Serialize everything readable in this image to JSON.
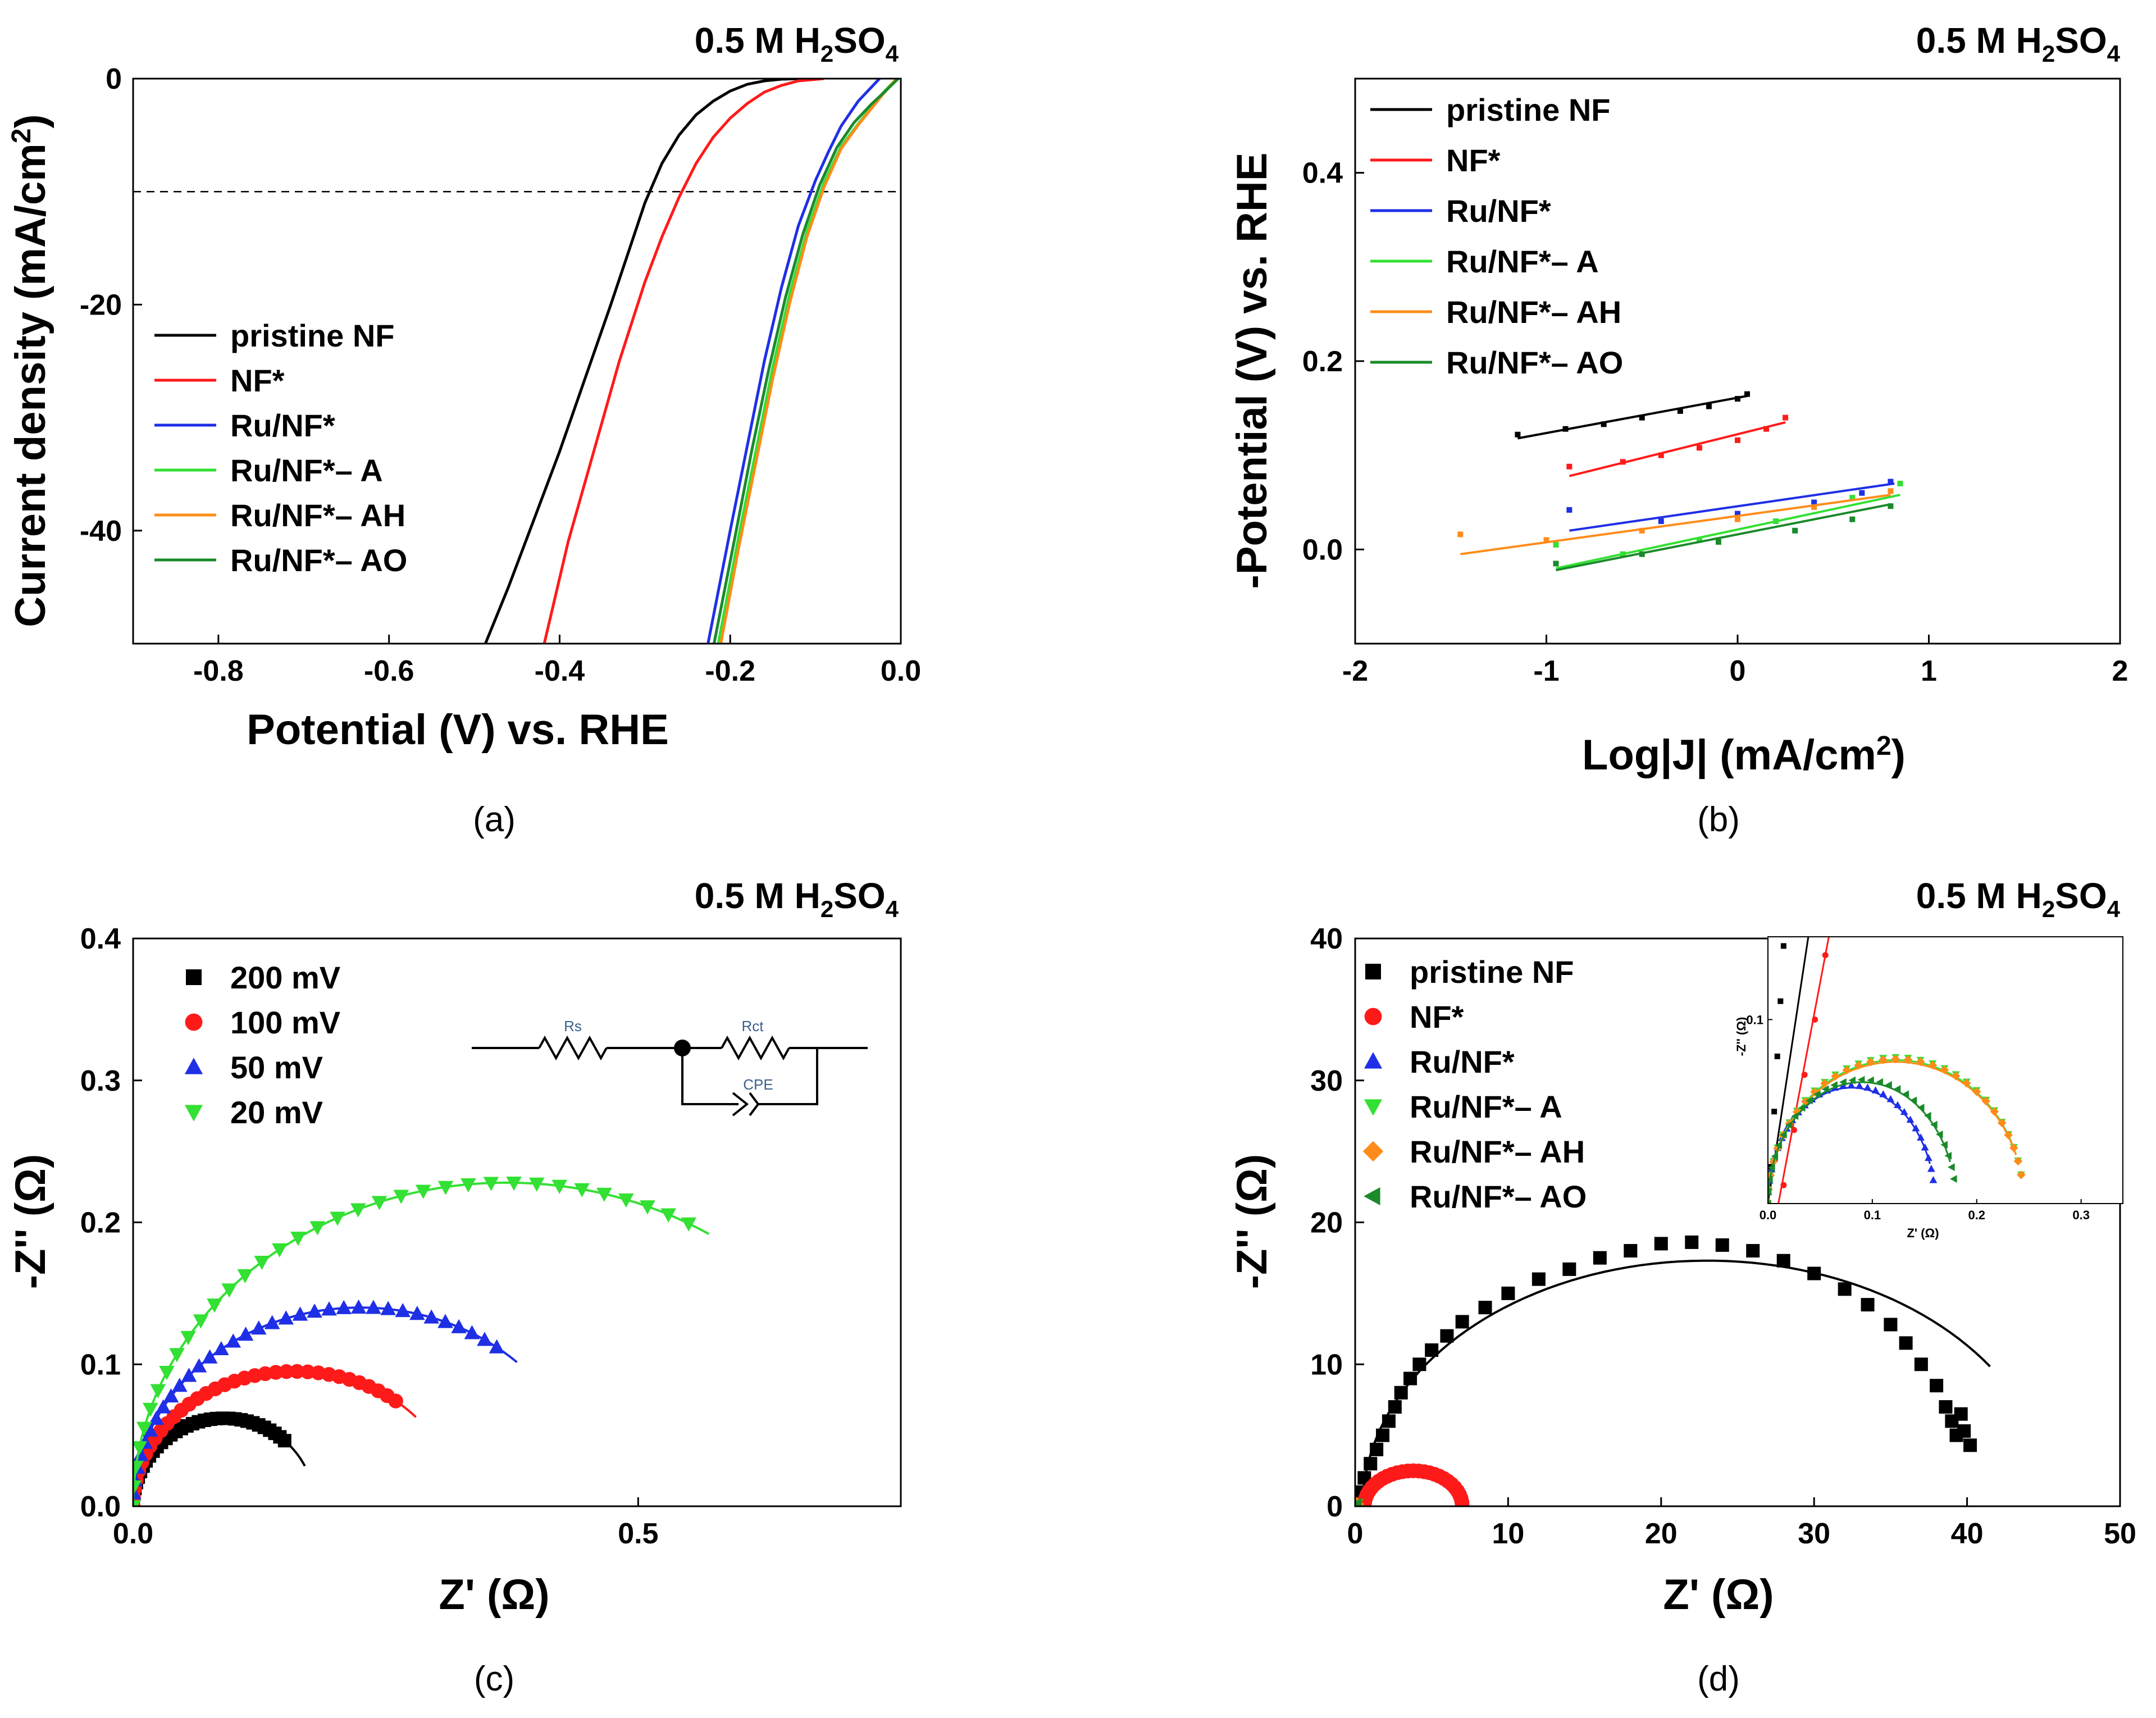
{
  "colors": {
    "black": "#000000",
    "red": "#ff1a1a",
    "blue": "#1f2fe6",
    "lightgreen": "#33e033",
    "orange": "#ff8c1a",
    "darkgreen": "#1a8a2a"
  },
  "chart_data": [
    {
      "panel": "(a)",
      "type": "line",
      "title": "0.5 M H2SO4",
      "xlabel": "Potential (V) vs. RHE",
      "ylabel": "Current density (mA/cm2)",
      "xlim": [
        -0.9,
        0.0
      ],
      "ylim": [
        -50,
        0
      ],
      "xticks": [
        -0.8,
        -0.6,
        -0.4,
        -0.2,
        0.0
      ],
      "xtick_labels": [
        "-0.8",
        "-0.6",
        "-0.4",
        "-0.2",
        "0.0"
      ],
      "yticks": [
        0,
        -20,
        -40
      ],
      "ytick_labels": [
        "0",
        "-20",
        "-40"
      ],
      "reference_line": {
        "y": -10,
        "style": "dashed"
      },
      "legend_position": "left",
      "series": [
        {
          "name": "pristine NF",
          "color_key": "black",
          "x": [
            -0.487,
            -0.46,
            -0.43,
            -0.4,
            -0.37,
            -0.34,
            -0.32,
            -0.3,
            -0.28,
            -0.26,
            -0.24,
            -0.22,
            -0.2,
            -0.18,
            -0.16,
            -0.14,
            -0.12
          ],
          "y": [
            -50,
            -45,
            -39,
            -33,
            -26.5,
            -20,
            -15.5,
            -11,
            -7.5,
            -5,
            -3.2,
            -2,
            -1.1,
            -0.5,
            -0.2,
            -0.05,
            0
          ]
        },
        {
          "name": "NF*",
          "color_key": "red",
          "x": [
            -0.418,
            -0.39,
            -0.36,
            -0.33,
            -0.3,
            -0.28,
            -0.26,
            -0.24,
            -0.22,
            -0.2,
            -0.18,
            -0.16,
            -0.14,
            -0.12,
            -0.09
          ],
          "y": [
            -50,
            -41,
            -33,
            -25,
            -18,
            -14,
            -10.5,
            -7.5,
            -5.2,
            -3.5,
            -2.2,
            -1.2,
            -0.6,
            -0.2,
            0
          ]
        },
        {
          "name": "Ru/NF*",
          "color_key": "blue",
          "x": [
            -0.226,
            -0.2,
            -0.18,
            -0.16,
            -0.14,
            -0.12,
            -0.1,
            -0.085,
            -0.07,
            -0.05,
            -0.035,
            -0.025
          ],
          "y": [
            -50,
            -40,
            -32.5,
            -25,
            -18.5,
            -13,
            -9,
            -6.5,
            -4.2,
            -2,
            -0.8,
            0
          ]
        },
        {
          "name": "Ru/NF*– A",
          "color_key": "lightgreen",
          "x": [
            -0.214,
            -0.19,
            -0.17,
            -0.15,
            -0.13,
            -0.11,
            -0.09,
            -0.07,
            -0.05,
            -0.035,
            -0.02,
            -0.005
          ],
          "y": [
            -50,
            -40.5,
            -33,
            -25.5,
            -19,
            -13.5,
            -9.2,
            -6,
            -4,
            -2.6,
            -1.2,
            0
          ]
        },
        {
          "name": "Ru/NF*– AH",
          "color_key": "orange",
          "x": [
            -0.211,
            -0.19,
            -0.17,
            -0.15,
            -0.13,
            -0.11,
            -0.09,
            -0.07,
            -0.05,
            -0.035,
            -0.02,
            -0.005
          ],
          "y": [
            -50,
            -41.5,
            -34,
            -26.5,
            -19.8,
            -14,
            -9.6,
            -6.2,
            -4.1,
            -2.7,
            -1.3,
            0
          ]
        },
        {
          "name": "Ru/NF*– AO",
          "color_key": "darkgreen",
          "x": [
            -0.219,
            -0.195,
            -0.175,
            -0.155,
            -0.135,
            -0.115,
            -0.095,
            -0.075,
            -0.055,
            -0.035,
            -0.018,
            -0.003
          ],
          "y": [
            -50,
            -40.8,
            -33,
            -25.8,
            -19.3,
            -13.8,
            -9.4,
            -6.1,
            -3.9,
            -2.3,
            -1.1,
            0
          ]
        }
      ]
    },
    {
      "panel": "(b)",
      "type": "scatter",
      "title": "0.5 M H2SO4",
      "xlabel": "Log|J| (mA/cm2)",
      "ylabel": "-Potential (V) vs. RHE",
      "xlim": [
        -2,
        2
      ],
      "ylim": [
        -0.1,
        0.5
      ],
      "xticks": [
        -2,
        -1,
        0,
        1,
        2
      ],
      "xtick_labels": [
        "-2",
        "-1",
        "0",
        "1",
        "2"
      ],
      "yticks": [
        0.0,
        0.2,
        0.4
      ],
      "ytick_labels": [
        "0.0",
        "0.2",
        "0.4"
      ],
      "legend_position": "top-left",
      "series": [
        {
          "name": "pristine NF",
          "color_key": "black",
          "fit_x": [
            -1.15,
            0.05
          ],
          "fit_y": [
            0.118,
            0.163
          ],
          "points_x": [
            -1.15,
            -0.9,
            -0.7,
            -0.5,
            -0.3,
            -0.15,
            0.0,
            0.05
          ],
          "points_y": [
            0.122,
            0.128,
            0.133,
            0.14,
            0.147,
            0.152,
            0.16,
            0.165
          ]
        },
        {
          "name": "NF*",
          "color_key": "red",
          "fit_x": [
            -0.88,
            0.25
          ],
          "fit_y": [
            0.078,
            0.135
          ],
          "points_x": [
            -0.88,
            -0.6,
            -0.4,
            -0.2,
            0.0,
            0.15,
            0.25
          ],
          "points_y": [
            0.088,
            0.093,
            0.1,
            0.108,
            0.116,
            0.128,
            0.14
          ]
        },
        {
          "name": "Ru/NF*",
          "color_key": "blue",
          "fit_x": [
            -0.88,
            0.82
          ],
          "fit_y": [
            0.02,
            0.07
          ],
          "points_x": [
            -0.88,
            -0.4,
            0.0,
            0.4,
            0.65,
            0.8
          ],
          "points_y": [
            0.042,
            0.03,
            0.038,
            0.05,
            0.06,
            0.072
          ]
        },
        {
          "name": "Ru/NF*– A",
          "color_key": "lightgreen",
          "fit_x": [
            -0.95,
            0.85
          ],
          "fit_y": [
            -0.02,
            0.058
          ],
          "points_x": [
            -0.95,
            -0.6,
            -0.2,
            0.2,
            0.6,
            0.85
          ],
          "points_y": [
            0.005,
            -0.005,
            0.01,
            0.03,
            0.055,
            0.07
          ]
        },
        {
          "name": "Ru/NF*– AH",
          "color_key": "orange",
          "fit_x": [
            -1.45,
            0.8
          ],
          "fit_y": [
            -0.005,
            0.058
          ],
          "points_x": [
            -1.45,
            -1.0,
            -0.5,
            0.0,
            0.4,
            0.8
          ],
          "points_y": [
            0.016,
            0.01,
            0.02,
            0.032,
            0.045,
            0.062
          ]
        },
        {
          "name": "Ru/NF*– AO",
          "color_key": "darkgreen",
          "fit_x": [
            -0.95,
            0.8
          ],
          "fit_y": [
            -0.022,
            0.048
          ],
          "points_x": [
            -0.95,
            -0.5,
            -0.1,
            0.3,
            0.6,
            0.8
          ],
          "points_y": [
            -0.015,
            -0.005,
            0.008,
            0.02,
            0.032,
            0.046
          ]
        }
      ]
    },
    {
      "panel": "(c)",
      "type": "scatter",
      "title": "0.5 M H2SO4",
      "xlabel": "Z' (Ω)",
      "ylabel": "-Z'' (Ω)",
      "xlim": [
        0,
        0.76
      ],
      "ylim": [
        0,
        0.4
      ],
      "xticks": [
        0.0,
        0.5
      ],
      "xtick_labels": [
        "0.0",
        "0.5"
      ],
      "yticks": [
        0.0,
        0.1,
        0.2,
        0.3,
        0.4
      ],
      "ytick_labels": [
        "0.0",
        "0.1",
        "0.2",
        "0.3",
        "0.4"
      ],
      "legend_position": "top-left",
      "circuit_labels": [
        "Rs",
        "Rct",
        "CPE"
      ],
      "series": [
        {
          "name": "200 mV",
          "color_key": "black",
          "marker": "square",
          "r0": 0.0,
          "r1": 0.18,
          "fit_end": 0.17
        },
        {
          "name": "100 mV",
          "color_key": "red",
          "marker": "circle",
          "r0": 0.0,
          "r1": 0.32,
          "fit_end": 0.28
        },
        {
          "name": "50 mV",
          "color_key": "blue",
          "marker": "triangle-up",
          "r0": 0.0,
          "r1": 0.45,
          "fit_end": 0.38
        },
        {
          "name": "20 mV",
          "color_key": "lightgreen",
          "marker": "triangle-down",
          "r0": 0.0,
          "r1": 0.74,
          "fit_end": 0.57
        }
      ]
    },
    {
      "panel": "(d)",
      "type": "scatter",
      "title": "0.5 M H2SO4",
      "xlabel": "Z' (Ω)",
      "ylabel": "-Z'' (Ω)",
      "xlim": [
        0,
        50
      ],
      "ylim": [
        0,
        40
      ],
      "xticks": [
        0,
        10,
        20,
        30,
        40,
        50
      ],
      "xtick_labels": [
        "0",
        "10",
        "20",
        "30",
        "40",
        "50"
      ],
      "yticks": [
        0,
        10,
        20,
        30,
        40
      ],
      "ytick_labels": [
        "0",
        "10",
        "20",
        "30",
        "40"
      ],
      "legend_position": "top-left",
      "series": [
        {
          "name": "pristine NF",
          "color_key": "black",
          "marker": "square",
          "r0": 0.5,
          "r1": 45.5,
          "fit_end": 41.5
        },
        {
          "name": "NF*",
          "color_key": "red",
          "marker": "circle",
          "r0": 0.6,
          "r1": 7.0,
          "fit_end": 7.0
        },
        {
          "name": "Ru/NF*",
          "color_key": "blue",
          "marker": "triangle-up",
          "r0": 0.0,
          "r1": 0.0,
          "fit_end": 0.0
        },
        {
          "name": "Ru/NF*– A",
          "color_key": "lightgreen",
          "marker": "triangle-down",
          "r0": 0.0,
          "r1": 0.0,
          "fit_end": 0.0
        },
        {
          "name": "Ru/NF*– AH",
          "color_key": "orange",
          "marker": "diamond",
          "r0": 0.0,
          "r1": 0.0,
          "fit_end": 0.0
        },
        {
          "name": "Ru/NF*– AO",
          "color_key": "darkgreen",
          "marker": "triangle-left",
          "r0": 0.0,
          "r1": 0.0,
          "fit_end": 0.0
        }
      ],
      "inset": {
        "xlabel": "Z' (Ω)",
        "ylabel": "-Z'' (Ω)",
        "xlim": [
          0,
          0.34
        ],
        "ylim": [
          0,
          0.145
        ],
        "xticks": [
          0.0,
          0.1,
          0.2,
          0.3
        ],
        "xtick_labels": [
          "0.0",
          "0.1",
          "0.2",
          "0.3"
        ],
        "yticks": [
          0.1
        ],
        "ytick_labels": [
          "0.1"
        ],
        "series": [
          {
            "name": "pristine NF",
            "color_key": "black",
            "marker": "square",
            "line_x": [
              0.0,
              0.04
            ],
            "line_y": [
              0.0,
              0.15
            ],
            "points_x": [
              0.003,
              0.006,
              0.009,
              0.012,
              0.015
            ],
            "points_y": [
              0.02,
              0.05,
              0.08,
              0.11,
              0.14
            ]
          },
          {
            "name": "NF*",
            "color_key": "red",
            "marker": "circle",
            "line_x": [
              0.01,
              0.06
            ],
            "line_y": [
              0.0,
              0.15
            ],
            "points_x": [
              0.015,
              0.025,
              0.035,
              0.045,
              0.055
            ],
            "points_y": [
              0.01,
              0.04,
              0.07,
              0.1,
              0.135
            ]
          },
          {
            "name": "Ru/NF*",
            "color_key": "blue",
            "marker": "triangle-up",
            "r0": 0.0,
            "r1": 0.16,
            "peak": 0.063
          },
          {
            "name": "Ru/NF*– A",
            "color_key": "lightgreen",
            "marker": "triangle-down",
            "r0": 0.0,
            "r1": 0.245,
            "peak": 0.078
          },
          {
            "name": "Ru/NF*– AH",
            "color_key": "orange",
            "marker": "diamond",
            "r0": 0.0,
            "r1": 0.245,
            "peak": 0.077
          },
          {
            "name": "Ru/NF*– AO",
            "color_key": "darkgreen",
            "marker": "triangle-left",
            "r0": 0.0,
            "r1": 0.18,
            "peak": 0.066
          }
        ]
      }
    }
  ],
  "captions": [
    "(a)",
    "(b)",
    "(c)",
    "(d)"
  ],
  "title_parts": {
    "prefix": "0.5 M H",
    "sub1": "2",
    "mid": "SO",
    "sub2": "4"
  },
  "axis_parts": {
    "a_ylabel_prefix": "Current density (mA/cm",
    "a_ylabel_sup": "2",
    "a_ylabel_suffix": ")",
    "b_xlabel_prefix": "Log|J| (mA/cm",
    "b_xlabel_sup": "2",
    "b_xlabel_suffix": ")"
  }
}
